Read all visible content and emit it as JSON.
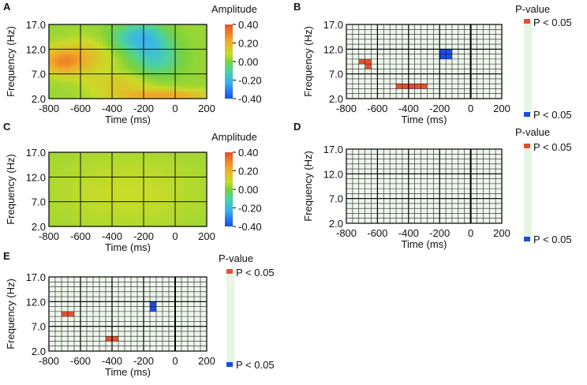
{
  "chart_data": [
    {
      "panel": "A",
      "type": "heatmap",
      "xlabel": "Time (ms)",
      "ylabel": "Frequency (Hz)",
      "x_ticks": [
        "-800",
        "-600",
        "-400",
        "-200",
        "0",
        "200"
      ],
      "x_tick_values": [
        -800,
        -600,
        -400,
        -200,
        0,
        200
      ],
      "y_ticks": [
        "17.0",
        "12.0",
        "7.0",
        "2.0"
      ],
      "y_tick_values": [
        17,
        12,
        7,
        2
      ],
      "xlim": [
        -800,
        200
      ],
      "ylim": [
        2,
        17
      ],
      "colorbar": {
        "title": "Amplitude",
        "ticks": [
          "0.40",
          "0.20",
          "0.00",
          "-0.20",
          "-0.40"
        ],
        "range": [
          -0.4,
          0.4
        ]
      },
      "blobs": [
        {
          "t": -720,
          "f": 9.5,
          "value": 0.22,
          "spread_t": 90,
          "spread_f": 1.8
        },
        {
          "t": -560,
          "f": 10.5,
          "value": 0.12,
          "spread_t": 120,
          "spread_f": 2.5
        },
        {
          "t": -350,
          "f": 5.0,
          "value": 0.1,
          "spread_t": 150,
          "spread_f": 1.5
        },
        {
          "t": -80,
          "f": 2.6,
          "value": 0.2,
          "spread_t": 220,
          "spread_f": 0.9
        },
        {
          "t": -200,
          "f": 14.5,
          "value": -0.18,
          "spread_t": 90,
          "spread_f": 2.2
        },
        {
          "t": -120,
          "f": 10.5,
          "value": -0.16,
          "spread_t": 100,
          "spread_f": 2.8
        },
        {
          "t": -330,
          "f": 14.0,
          "value": -0.08,
          "spread_t": 90,
          "spread_f": 2.0
        }
      ]
    },
    {
      "panel": "B",
      "type": "heatmap",
      "xlabel": "Time (ms)",
      "ylabel": "Frequency (Hz)",
      "x_ticks": [
        "-800",
        "-600",
        "-400",
        "-200",
        "0",
        "200"
      ],
      "x_tick_values": [
        -800,
        -600,
        -400,
        -200,
        0,
        200
      ],
      "y_ticks": [
        "17.0",
        "12.0",
        "7.0",
        "2.0"
      ],
      "y_tick_values": [
        17,
        12,
        7,
        2
      ],
      "xlim": [
        -800,
        200
      ],
      "ylim": [
        2,
        17
      ],
      "grid": {
        "x_step": 40,
        "y_step": 1
      },
      "legend": {
        "title": "P-value",
        "positive": "P < 0.05",
        "negative": "P < 0.05",
        "positive_color": "#e8502a",
        "negative_color": "#1a4ce8"
      },
      "cells": [
        {
          "t0": -720,
          "t1": -640,
          "f0": 9,
          "f1": 10,
          "sign": "positive"
        },
        {
          "t0": -680,
          "t1": -640,
          "f0": 8,
          "f1": 9,
          "sign": "positive"
        },
        {
          "t0": -480,
          "t1": -280,
          "f0": 4,
          "f1": 5,
          "sign": "positive"
        },
        {
          "t0": -200,
          "t1": -120,
          "f0": 10,
          "f1": 12,
          "sign": "negative"
        }
      ]
    },
    {
      "panel": "C",
      "type": "heatmap",
      "xlabel": "Time (ms)",
      "ylabel": "Frequency (Hz)",
      "x_ticks": [
        "-800",
        "-600",
        "-400",
        "-200",
        "0",
        "200"
      ],
      "x_tick_values": [
        -800,
        -600,
        -400,
        -200,
        0,
        200
      ],
      "y_ticks": [
        "17.0",
        "12.0",
        "7.0",
        "2.0"
      ],
      "y_tick_values": [
        17,
        12,
        7,
        2
      ],
      "xlim": [
        -800,
        200
      ],
      "ylim": [
        2,
        17
      ],
      "colorbar": {
        "title": "Amplitude",
        "ticks": [
          "0.40",
          "0.20",
          "0.00",
          "-0.20",
          "-0.40"
        ],
        "range": [
          -0.4,
          0.4
        ]
      },
      "blobs": [
        {
          "t": -300,
          "f": 9.0,
          "value": 0.05,
          "spread_t": 400,
          "spread_f": 6.0
        }
      ]
    },
    {
      "panel": "D",
      "type": "heatmap",
      "xlabel": "Time (ms)",
      "ylabel": "Frequency (Hz)",
      "x_ticks": [
        "-800",
        "-600",
        "-400",
        "-200",
        "0",
        "200"
      ],
      "x_tick_values": [
        -800,
        -600,
        -400,
        -200,
        0,
        200
      ],
      "y_ticks": [
        "17.0",
        "12.0",
        "7.0",
        "2.0"
      ],
      "y_tick_values": [
        17,
        12,
        7,
        2
      ],
      "xlim": [
        -800,
        200
      ],
      "ylim": [
        2,
        17
      ],
      "grid": {
        "x_step": 40,
        "y_step": 1
      },
      "legend": {
        "title": "P-value",
        "positive": "P < 0.05",
        "negative": "P < 0.05",
        "positive_color": "#e8502a",
        "negative_color": "#1a4ce8"
      },
      "cells": []
    },
    {
      "panel": "E",
      "type": "heatmap",
      "xlabel": "Time (ms)",
      "ylabel": "Frequency (Hz)",
      "x_ticks": [
        "-800",
        "-600",
        "-400",
        "-200",
        "0",
        "200"
      ],
      "x_tick_values": [
        -800,
        -600,
        -400,
        -200,
        0,
        200
      ],
      "y_ticks": [
        "17.0",
        "12.0",
        "7.0",
        "2.0"
      ],
      "y_tick_values": [
        17,
        12,
        7,
        2
      ],
      "xlim": [
        -800,
        200
      ],
      "ylim": [
        2,
        17
      ],
      "grid": {
        "x_step": 40,
        "y_step": 1
      },
      "legend": {
        "title": "P-value",
        "positive": "P < 0.05",
        "negative": "P < 0.05",
        "positive_color": "#e8502a",
        "negative_color": "#1a4ce8"
      },
      "cells": [
        {
          "t0": -720,
          "t1": -640,
          "f0": 9,
          "f1": 10,
          "sign": "positive"
        },
        {
          "t0": -440,
          "t1": -360,
          "f0": 4,
          "f1": 5,
          "sign": "positive"
        },
        {
          "t0": -160,
          "t1": -120,
          "f0": 10,
          "f1": 12,
          "sign": "negative"
        }
      ]
    }
  ]
}
